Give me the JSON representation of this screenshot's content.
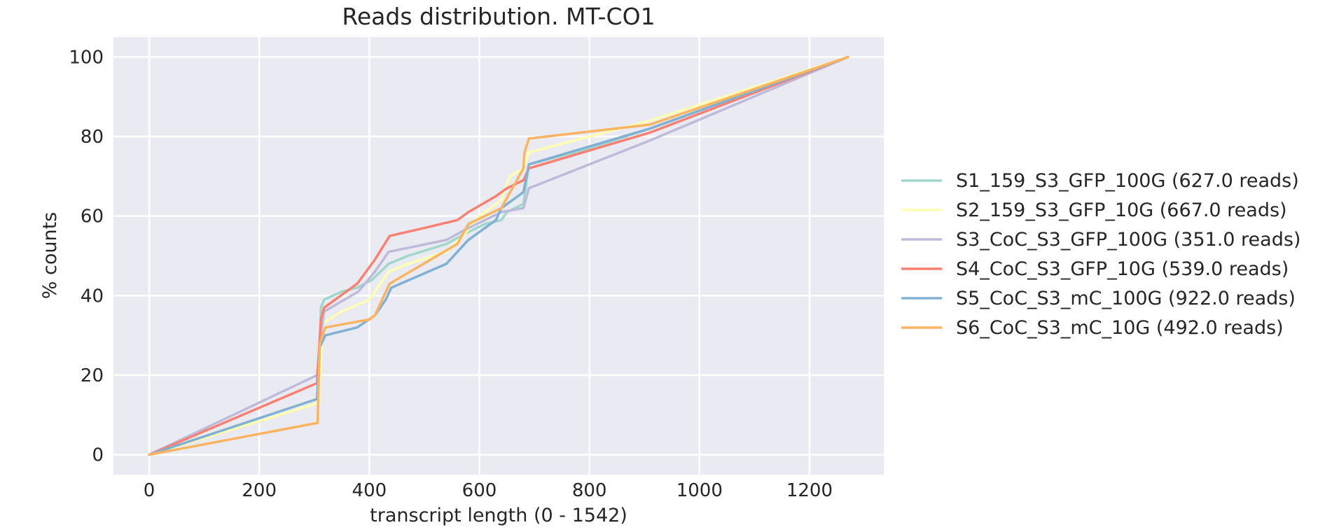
{
  "chart_data": {
    "type": "line",
    "title": "Reads distribution. MT-CO1",
    "xlabel": "transcript length (0 - 1542)",
    "ylabel": "% counts",
    "xlim": [
      -65,
      1335
    ],
    "ylim": [
      -5,
      105
    ],
    "xticks": [
      "0",
      "200",
      "400",
      "600",
      "800",
      "1000",
      "1200"
    ],
    "yticks": [
      "0",
      "20",
      "40",
      "60",
      "80",
      "100"
    ],
    "grid": true,
    "background": "#eaeaf2",
    "legend_position": "right",
    "series": [
      {
        "name": "S1_159_S3_GFP_100G (627.0 reads)",
        "color": "#9fd7cb",
        "points": [
          [
            0,
            0
          ],
          [
            308,
            13
          ],
          [
            312,
            37
          ],
          [
            318,
            39
          ],
          [
            350,
            41
          ],
          [
            378,
            42
          ],
          [
            405,
            44
          ],
          [
            420,
            46
          ],
          [
            435,
            48
          ],
          [
            470,
            50
          ],
          [
            540,
            53
          ],
          [
            580,
            56
          ],
          [
            610,
            58
          ],
          [
            640,
            59
          ],
          [
            650,
            61
          ],
          [
            680,
            63
          ],
          [
            690,
            73
          ],
          [
            800,
            77
          ],
          [
            910,
            82
          ],
          [
            1270,
            100
          ]
        ]
      },
      {
        "name": "S2_159_S3_GFP_10G (667.0 reads)",
        "color": "#ffffb3",
        "points": [
          [
            0,
            0
          ],
          [
            308,
            13
          ],
          [
            315,
            33
          ],
          [
            350,
            36
          ],
          [
            400,
            39
          ],
          [
            435,
            46
          ],
          [
            470,
            48
          ],
          [
            540,
            51
          ],
          [
            570,
            55
          ],
          [
            600,
            60
          ],
          [
            640,
            64
          ],
          [
            655,
            70
          ],
          [
            680,
            72
          ],
          [
            690,
            76
          ],
          [
            800,
            80
          ],
          [
            910,
            84
          ],
          [
            1270,
            100
          ]
        ]
      },
      {
        "name": "S3_CoC_S3_GFP_100G (351.0 reads)",
        "color": "#bebada",
        "points": [
          [
            0,
            0
          ],
          [
            305,
            20
          ],
          [
            310,
            28
          ],
          [
            318,
            36
          ],
          [
            380,
            41
          ],
          [
            410,
            46
          ],
          [
            435,
            51
          ],
          [
            540,
            54
          ],
          [
            580,
            57
          ],
          [
            640,
            61
          ],
          [
            680,
            62
          ],
          [
            690,
            67
          ],
          [
            910,
            79
          ],
          [
            1270,
            100
          ]
        ]
      },
      {
        "name": "S4_CoC_S3_GFP_10G (539.0 reads)",
        "color": "#fb8072",
        "points": [
          [
            0,
            0
          ],
          [
            305,
            18
          ],
          [
            312,
            34
          ],
          [
            318,
            37
          ],
          [
            378,
            43
          ],
          [
            410,
            49
          ],
          [
            437,
            55
          ],
          [
            500,
            57
          ],
          [
            560,
            59
          ],
          [
            580,
            61
          ],
          [
            630,
            65
          ],
          [
            650,
            67
          ],
          [
            680,
            69
          ],
          [
            690,
            72
          ],
          [
            910,
            81
          ],
          [
            1270,
            100
          ]
        ]
      },
      {
        "name": "S5_CoC_S3_mC_100G (922.0 reads)",
        "color": "#80b1d3",
        "points": [
          [
            0,
            0
          ],
          [
            305,
            14
          ],
          [
            310,
            27
          ],
          [
            320,
            30
          ],
          [
            378,
            32
          ],
          [
            410,
            35
          ],
          [
            430,
            39
          ],
          [
            440,
            42
          ],
          [
            540,
            48
          ],
          [
            560,
            51
          ],
          [
            580,
            54
          ],
          [
            600,
            56
          ],
          [
            630,
            59
          ],
          [
            640,
            62
          ],
          [
            660,
            64
          ],
          [
            680,
            66
          ],
          [
            690,
            73
          ],
          [
            910,
            82
          ],
          [
            1270,
            100
          ]
        ]
      },
      {
        "name": "S6_CoC_S3_mC_10G (492.0 reads)",
        "color": "#fdb462",
        "points": [
          [
            0,
            0
          ],
          [
            306,
            8
          ],
          [
            310,
            28
          ],
          [
            320,
            32
          ],
          [
            400,
            34
          ],
          [
            410,
            35
          ],
          [
            437,
            43
          ],
          [
            560,
            53
          ],
          [
            580,
            58
          ],
          [
            640,
            62
          ],
          [
            680,
            72
          ],
          [
            682,
            76
          ],
          [
            690,
            79.5
          ],
          [
            910,
            83
          ],
          [
            1270,
            100
          ]
        ]
      }
    ]
  }
}
